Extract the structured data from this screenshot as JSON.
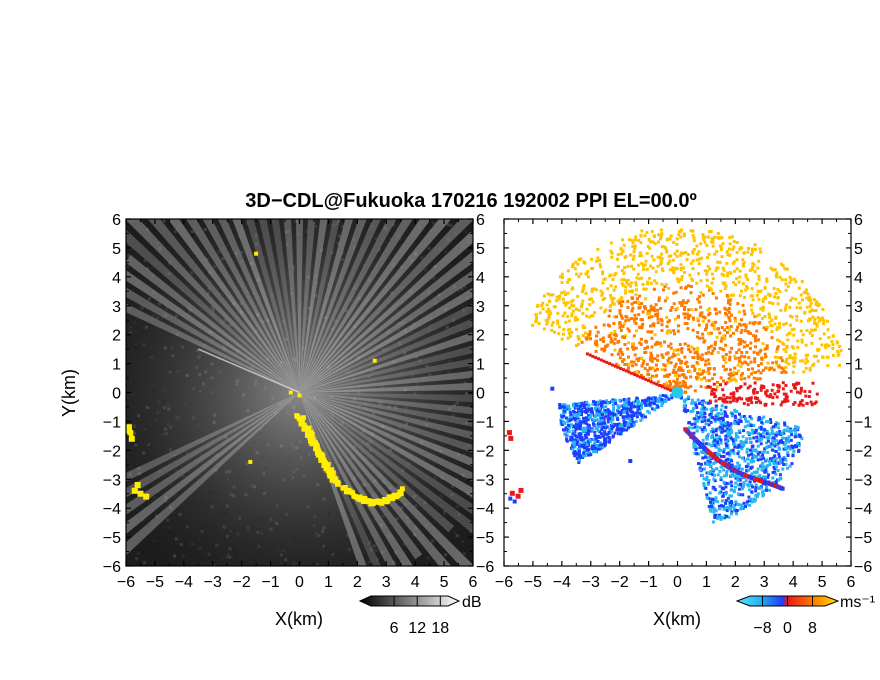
{
  "title": "3D−CDL@Fukuoka 170216 192002 PPI EL=00.0º",
  "colors": {
    "echo_yellow": "#ffee00",
    "bg_dark": "#1c1c1c",
    "vel_blue_dark": "#1f3cff",
    "vel_blue_light": "#27b6f2",
    "vel_orange": "#ff7a00",
    "vel_yellow": "#ffc400",
    "vel_red": "#e81919"
  },
  "chart_data": [
    {
      "type": "heatmap",
      "panel": "left",
      "quantity": "SNR",
      "xlabel": "X(km)",
      "ylabel": "Y(km)",
      "xlim": [
        -6,
        6
      ],
      "ylim": [
        -6,
        6
      ],
      "x_ticks": [
        "−6",
        "−5",
        "−4",
        "−3",
        "−2",
        "−1",
        "0",
        "1",
        "2",
        "3",
        "4",
        "5",
        "6"
      ],
      "y_ticks": [
        "6",
        "5",
        "4",
        "3",
        "2",
        "1",
        "0",
        "−1",
        "−2",
        "−3",
        "−4",
        "−5",
        "−6"
      ],
      "colorbar": {
        "unit": "dB",
        "ticks": [
          "6",
          "12",
          "18"
        ],
        "range": [
          0,
          20
        ]
      }
    },
    {
      "type": "heatmap",
      "panel": "right",
      "quantity": "radial velocity",
      "xlabel": "X(km)",
      "ylabel": "",
      "xlim": [
        -6,
        6
      ],
      "ylim": [
        -6,
        6
      ],
      "x_ticks": [
        "−6",
        "−5",
        "−4",
        "−3",
        "−2",
        "−1",
        "0",
        "1",
        "2",
        "3",
        "4",
        "5",
        "6"
      ],
      "y_ticks": [
        "6",
        "5",
        "4",
        "3",
        "2",
        "1",
        "0",
        "−1",
        "−2",
        "−3",
        "−4",
        "−5",
        "−6"
      ],
      "colorbar": {
        "unit": "ms⁻¹",
        "ticks": [
          "−8",
          "0",
          "8"
        ],
        "range": [
          -12,
          12
        ]
      }
    }
  ]
}
